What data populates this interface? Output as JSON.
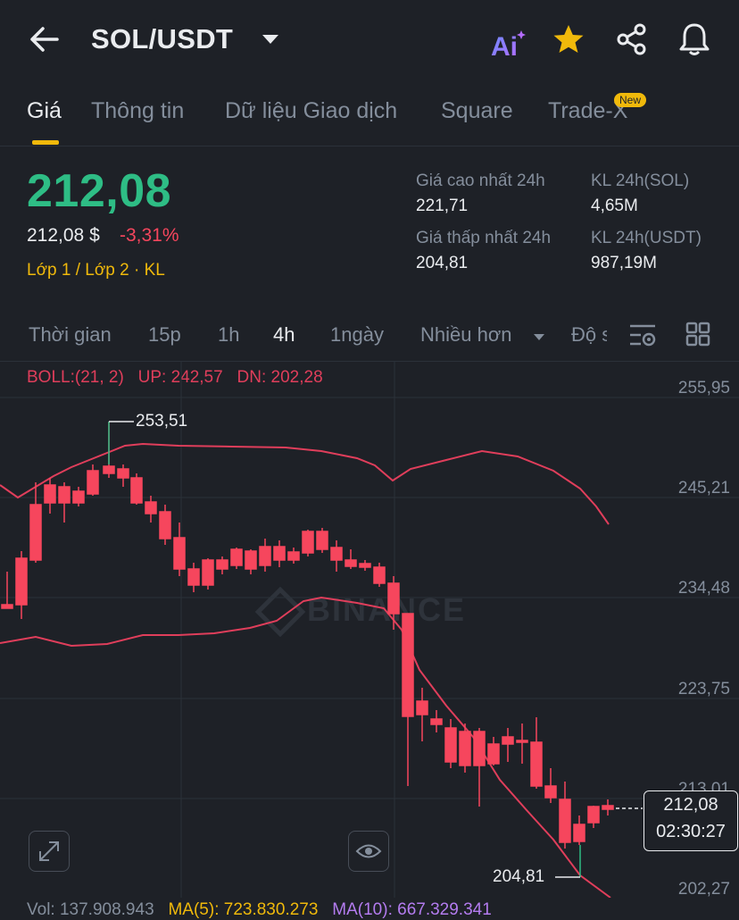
{
  "header": {
    "title": "SOL/USDT",
    "ai_label": "Ai"
  },
  "tabs": [
    {
      "label": "Giá"
    },
    {
      "label": "Thông tin"
    },
    {
      "label": "Dữ liệu Giao dịch"
    },
    {
      "label": "Square"
    },
    {
      "label": "Trade-X"
    }
  ],
  "new_badge": "New",
  "price": {
    "last": "212,08",
    "usd": "212,08 $",
    "change": "-3,31%",
    "tags": "Lớp 1 / Lớp 2 · KL"
  },
  "stats": {
    "high_label": "Giá cao nhất 24h",
    "high_value": "221,71",
    "low_label": "Giá thấp nhất 24h",
    "low_value": "204,81",
    "vol_sol_label": "KL 24h(SOL)",
    "vol_sol_value": "4,65M",
    "vol_usdt_label": "KL 24h(USDT)",
    "vol_usdt_value": "987,19M"
  },
  "timeframes": {
    "time": "Thời gian",
    "m15": "15p",
    "h1": "1h",
    "h4": "4h",
    "d1": "1ngày",
    "more": "Nhiều hơn",
    "depth": "Độ s"
  },
  "chart": {
    "boll": "BOLL:(21, 2)",
    "up": "UP: 242,57",
    "dn": "DN: 202,28",
    "y_ticks": [
      "255,95",
      "245,21",
      "234,48",
      "223,75",
      "213,01",
      "202,27"
    ],
    "high_marker": "253,51",
    "low_marker": "204,81",
    "current_price": "212,08",
    "countdown": "02:30:27",
    "watermark": "BINANCE"
  },
  "volume": {
    "vol": "Vol: 137.908.943",
    "ma5": "MA(5): 723.830.273",
    "ma10": "MA(10): 667.329.341"
  },
  "colors": {
    "up": "#2ebd85",
    "down": "#f6465d",
    "accent": "#f0b90b",
    "boll": "#e03e5b"
  }
}
